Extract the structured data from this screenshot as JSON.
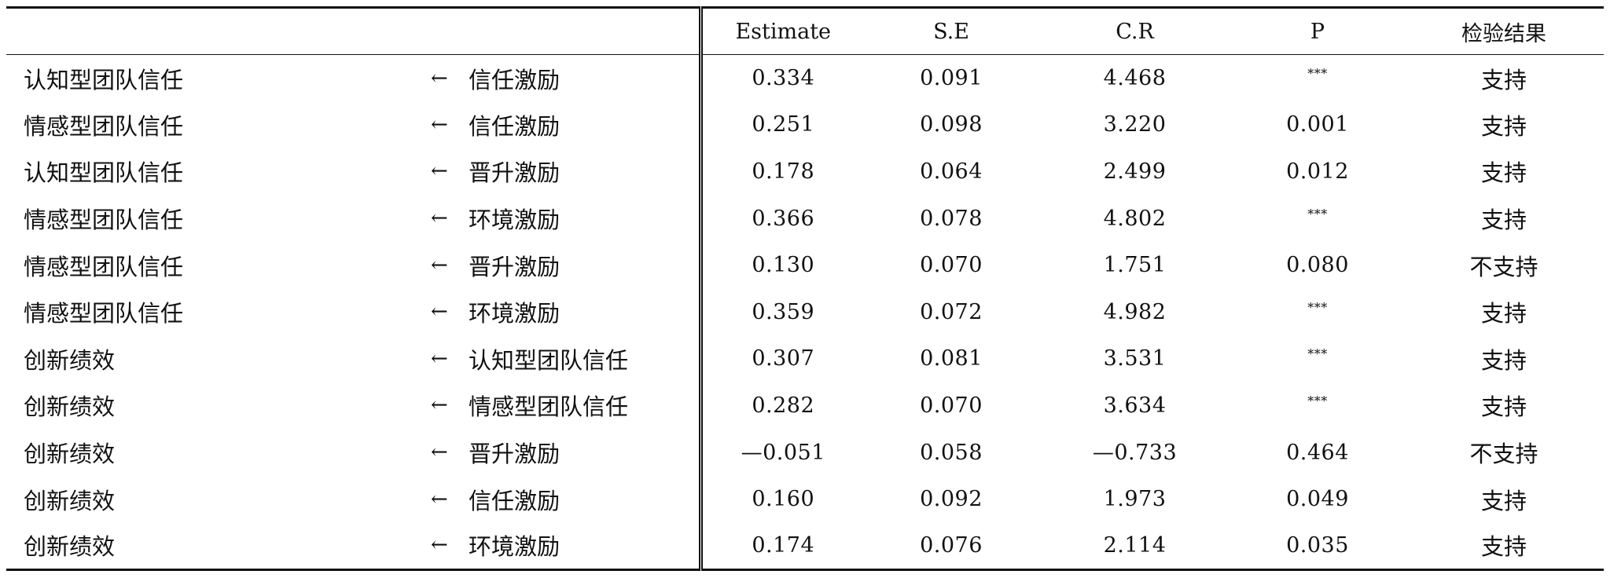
{
  "table": {
    "headers": {
      "estimate": "Estimate",
      "se": "S.E",
      "cr": "C.R",
      "p": "P",
      "result": "检验结果"
    },
    "arrow": "←",
    "rows": [
      {
        "dv": "认知型团队信任",
        "iv": "信任激励",
        "estimate": "0.334",
        "se": "0.091",
        "cr": "4.468",
        "p": "***",
        "result": "支持"
      },
      {
        "dv": "情感型团队信任",
        "iv": "信任激励",
        "estimate": "0.251",
        "se": "0.098",
        "cr": "3.220",
        "p": "0.001",
        "result": "支持"
      },
      {
        "dv": "认知型团队信任",
        "iv": "晋升激励",
        "estimate": "0.178",
        "se": "0.064",
        "cr": "2.499",
        "p": "0.012",
        "result": "支持"
      },
      {
        "dv": "情感型团队信任",
        "iv": "环境激励",
        "estimate": "0.366",
        "se": "0.078",
        "cr": "4.802",
        "p": "***",
        "result": "支持"
      },
      {
        "dv": "情感型团队信任",
        "iv": "晋升激励",
        "estimate": "0.130",
        "se": "0.070",
        "cr": "1.751",
        "p": "0.080",
        "result": "不支持"
      },
      {
        "dv": "情感型团队信任",
        "iv": "环境激励",
        "estimate": "0.359",
        "se": "0.072",
        "cr": "4.982",
        "p": "***",
        "result": "支持"
      },
      {
        "dv": "创新绩效",
        "iv": "认知型团队信任",
        "estimate": "0.307",
        "se": "0.081",
        "cr": "3.531",
        "p": "***",
        "result": "支持"
      },
      {
        "dv": "创新绩效",
        "iv": "情感型团队信任",
        "estimate": "0.282",
        "se": "0.070",
        "cr": "3.634",
        "p": "***",
        "result": "支持"
      },
      {
        "dv": "创新绩效",
        "iv": "晋升激励",
        "estimate": "—0.051",
        "se": "0.058",
        "cr": "—0.733",
        "p": "0.464",
        "result": "不支持"
      },
      {
        "dv": "创新绩效",
        "iv": "信任激励",
        "estimate": "0.160",
        "se": "0.092",
        "cr": "1.973",
        "p": "0.049",
        "result": "支持"
      },
      {
        "dv": "创新绩效",
        "iv": "环境激励",
        "estimate": "0.174",
        "se": "0.076",
        "cr": "2.114",
        "p": "0.035",
        "result": "支持"
      }
    ]
  }
}
